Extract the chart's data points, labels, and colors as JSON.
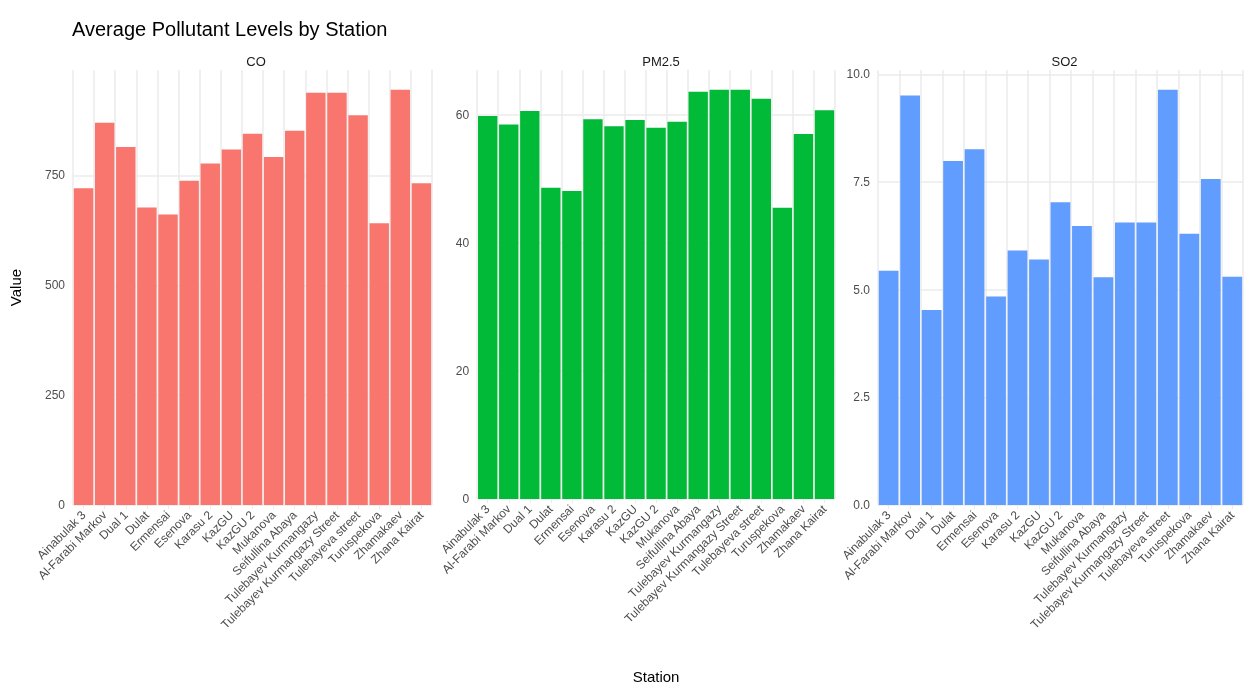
{
  "chart_data": [
    {
      "type": "bar",
      "title": "Average Pollutant Levels by Station",
      "subtitle": "CO",
      "ylabel": "Value",
      "categories": [
        "Ainabulak 3",
        "Al-Farabi Markov",
        "Dual 1",
        "Dulat",
        "Ermensai",
        "Esenova",
        "Karasu 2",
        "KazGU",
        "KazGU 2",
        "Mukanova",
        "Seifullina Abaya",
        "Tulebayev Kurmangazy",
        "Tulebayev Kurmangazy Street",
        "Tulebayeva street",
        "Turuspekova",
        "Zhamakaev",
        "Zhana Kairat"
      ],
      "values": [
        721,
        870,
        815,
        677,
        661,
        738,
        777,
        809,
        845,
        792,
        852,
        938,
        938,
        887,
        641,
        945,
        732
      ],
      "color": "#f8766d",
      "ylim": [
        0,
        990
      ],
      "yticks": [
        0,
        250,
        500,
        750
      ],
      "grid": true
    },
    {
      "type": "bar",
      "title": "PM2.5",
      "xlabel": "Station",
      "categories": [
        "Ainabulak 3",
        "Al-Farabi Markov",
        "Dual 1",
        "Dulat",
        "Ermensai",
        "Esenova",
        "Karasu 2",
        "KazGU",
        "KazGU 2",
        "Mukanova",
        "Seifullina Abaya",
        "Tulebayev Kurmangazy",
        "Tulebayev Kurmangazy Street",
        "Tulebayeva street",
        "Turuspekova",
        "Zhamakaev",
        "Zhana Kairat"
      ],
      "values": [
        59.8,
        58.5,
        60.6,
        48.6,
        48.1,
        59.3,
        58.2,
        59.2,
        58.0,
        58.9,
        63.6,
        63.9,
        63.9,
        62.5,
        45.5,
        57.0,
        60.7
      ],
      "color": "#00ba38",
      "ylim": [
        0,
        67
      ],
      "yticks": [
        0,
        20,
        40,
        60
      ],
      "grid": true
    },
    {
      "type": "bar",
      "title": "SO2",
      "categories": [
        "Ainabulak 3",
        "Al-Farabi Markov",
        "Dual 1",
        "Dulat",
        "Ermensai",
        "Esenova",
        "Karasu 2",
        "KazGU",
        "KazGU 2",
        "Mukanova",
        "Seifullina Abaya",
        "Tulebayev Kurmangazy",
        "Tulebayev Kurmangazy Street",
        "Tulebayeva street",
        "Turuspekova",
        "Zhamakaev",
        "Zhana Kairat"
      ],
      "values": [
        5.44,
        9.51,
        4.53,
        7.99,
        8.26,
        4.84,
        5.91,
        5.7,
        7.03,
        6.48,
        5.29,
        6.56,
        6.56,
        9.64,
        6.3,
        7.57,
        5.3
      ],
      "color": "#619cff",
      "ylim": [
        0,
        10.1
      ],
      "yticks": [
        {
          "value": 0,
          "label": "0.0"
        },
        {
          "value": 2.5,
          "label": "2.5"
        },
        {
          "value": 5,
          "label": "5.0"
        },
        {
          "value": 7.5,
          "label": "7.5"
        },
        {
          "value": 10,
          "label": "10.0"
        }
      ],
      "grid": true
    }
  ]
}
